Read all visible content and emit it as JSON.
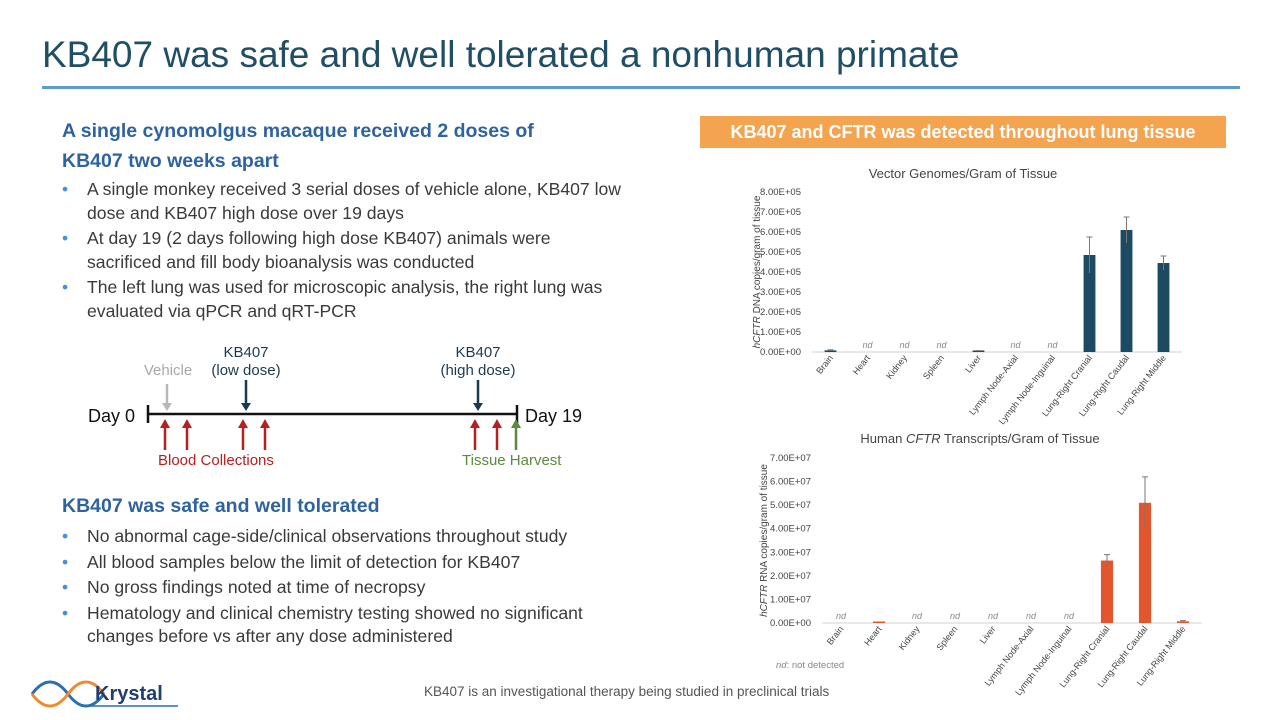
{
  "title": "KB407 was safe and well tolerated a nonhuman primate",
  "section1": {
    "heading_line1": "A single cynomolgus macaque received 2 doses of",
    "heading_line2": "KB407 two weeks apart",
    "bullets": [
      "A single monkey received 3 serial doses of vehicle alone, KB407 low dose and KB407 high dose over 19 days",
      "At day 19 (2 days following high dose KB407) animals were sacrificed and fill body bioanalysis was conducted",
      "The left lung was used for microscopic analysis, the right lung was evaluated via qPCR and qRT-PCR"
    ]
  },
  "timeline": {
    "vehicle": "Vehicle",
    "low_dose_l1": "KB407",
    "low_dose_l2": "(low dose)",
    "high_dose_l1": "KB407",
    "high_dose_l2": "(high dose)",
    "day0": "Day 0",
    "day19": "Day 19",
    "blood": "Blood Collections",
    "tissue": "Tissue Harvest"
  },
  "section2": {
    "heading": "KB407 was safe and well tolerated",
    "bullets": [
      "No abnormal cage-side/clinical observations throughout study",
      "All blood samples below the limit of detection for KB407",
      "No gross findings noted at time of necropsy",
      "Hematology and clinical chemistry testing showed no significant changes before vs after any dose administered"
    ]
  },
  "banner": "KB407 and CFTR was detected throughout lung tissue",
  "footer": "KB407 is an investigational therapy being studied in preclinical trials",
  "logo_text": "Krystal",
  "colors": {
    "dna_bar": "#1b4a62",
    "rna_bar": "#e3562d",
    "banner": "#f4a34f",
    "title": "#1f4e66",
    "blood": "#b52020",
    "tissue": "#5a8a3c"
  },
  "chart_data": [
    {
      "type": "bar",
      "title": "Vector Genomes/Gram of Tissue",
      "ylabel_italic": "hCFTR",
      "ylabel_rest": " DNA copies/gram of tissue",
      "categories": [
        "Brain",
        "Heart",
        "Kidney",
        "Spleen",
        "Liver",
        "Lymph Node-Axial",
        "Lymph Node-Inguinal",
        "Lung-Right Cranial",
        "Lung-Right Caudal",
        "Lung-Right Middle"
      ],
      "values": [
        8000,
        null,
        null,
        null,
        5000,
        null,
        null,
        485000,
        610000,
        445000
      ],
      "errors": [
        3000,
        null,
        null,
        null,
        2000,
        null,
        null,
        90000,
        65000,
        35000
      ],
      "nd_label": "nd",
      "ylim": [
        0,
        800000
      ],
      "yticks": [
        "0.00E+00",
        "1.00E+05",
        "2.00E+05",
        "3.00E+05",
        "4.00E+05",
        "5.00E+05",
        "6.00E+05",
        "7.00E+05",
        "8.00E+05"
      ]
    },
    {
      "type": "bar",
      "title_pre": "Human ",
      "title_italic": "CFTR",
      "title_post": " Transcripts/Gram of Tissue",
      "ylabel_italic": "hCFTR",
      "ylabel_rest": " RNA copies/gram of tissue",
      "categories": [
        "Brain",
        "Heart",
        "Kidney",
        "Spleen",
        "Liver",
        "Lymph Node-Axial",
        "Lymph Node-Inguinal",
        "Lung-Right Cranial",
        "Lung-Right Caudal",
        "Lung-Right Middle"
      ],
      "values": [
        null,
        300000,
        null,
        null,
        null,
        null,
        null,
        26500000,
        51000000,
        700000
      ],
      "errors": [
        null,
        0,
        null,
        null,
        null,
        null,
        null,
        2500000,
        11000000,
        300000
      ],
      "nd_label": "nd",
      "ylim": [
        0,
        70000000
      ],
      "yticks": [
        "0.00E+00",
        "1.00E+07",
        "2.00E+07",
        "3.00E+07",
        "4.00E+07",
        "5.00E+07",
        "6.00E+07",
        "7.00E+07"
      ],
      "footnote_italic": "nd",
      "footnote_rest": ": not detected"
    }
  ]
}
